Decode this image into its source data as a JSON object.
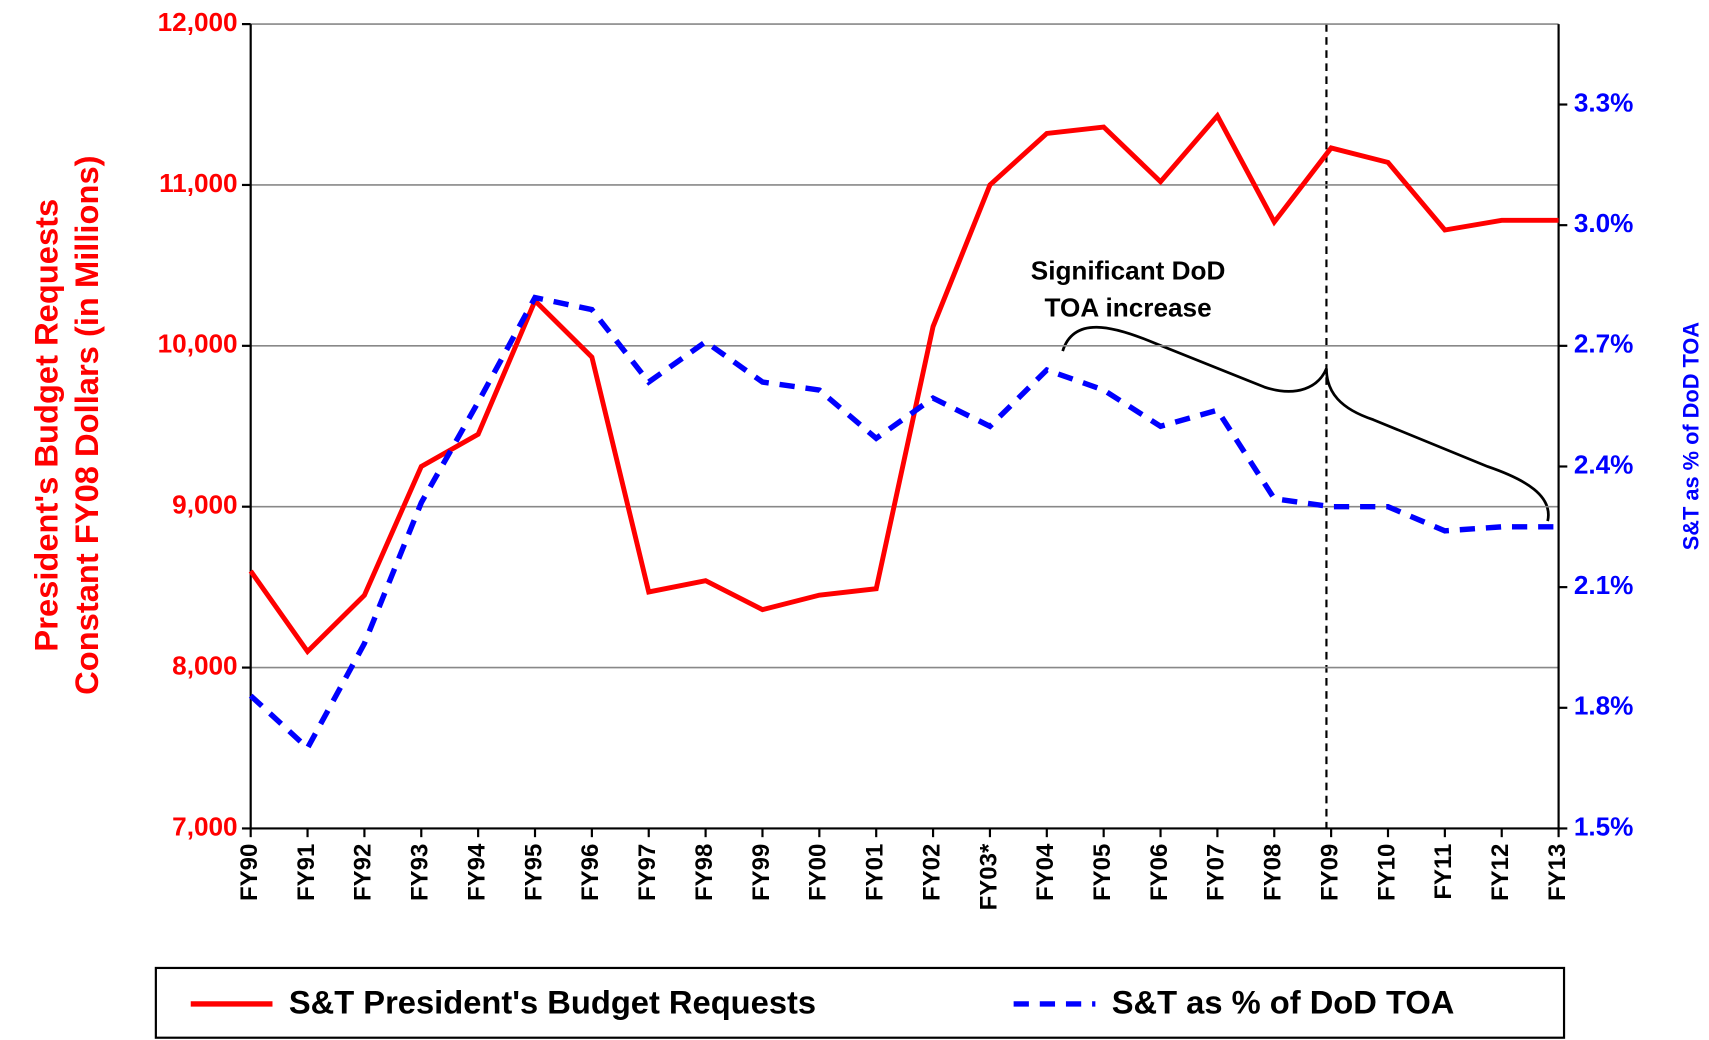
{
  "chart_data": {
    "type": "line",
    "y_axis_label": [
      "President's Budget Requests",
      "Constant FY08 Dollars (in Millions)"
    ],
    "y2_axis_label": "S&T as % of DoD TOA",
    "annotation": [
      "Significant DoD",
      "TOA increase"
    ],
    "categories": [
      "FY90",
      "FY91",
      "FY92",
      "FY93",
      "FY94",
      "FY95",
      "FY96",
      "FY97",
      "FY98",
      "FY99",
      "FY00",
      "FY01",
      "FY02",
      "FY03*",
      "FY04",
      "FY05",
      "FY06",
      "FY07",
      "FY08",
      "FY09",
      "FY10",
      "FY11",
      "FY12",
      "FY13"
    ],
    "series": [
      {
        "name": "S&T President's Budget Requests",
        "color": "#ff0000",
        "style": "solid",
        "values": [
          8600,
          8100,
          8450,
          9250,
          9450,
          10280,
          9930,
          8470,
          8540,
          8360,
          8450,
          8490,
          10120,
          11000,
          11320,
          11360,
          11020,
          11430,
          10770,
          11230,
          11140,
          10720,
          10780,
          10780
        ]
      },
      {
        "name": "S&T as % of DoD TOA",
        "color": "#0000ff",
        "style": "dashed",
        "axis": "y2",
        "values": [
          1.83,
          1.7,
          1.96,
          2.31,
          2.56,
          2.82,
          2.79,
          2.61,
          2.71,
          2.61,
          2.59,
          2.47,
          2.57,
          2.5,
          2.64,
          2.59,
          2.5,
          2.54,
          2.32,
          2.3,
          2.3,
          2.24,
          2.25,
          2.25
        ]
      }
    ],
    "ylim": [
      7000,
      12000
    ],
    "yticks": [
      {
        "value": 7000,
        "label": "7,000"
      },
      {
        "value": 8000,
        "label": "8,000"
      },
      {
        "value": 9000,
        "label": "9,000"
      },
      {
        "value": 10000,
        "label": "10,000"
      },
      {
        "value": 11000,
        "label": "11,000"
      },
      {
        "value": 12000,
        "label": "12,000"
      }
    ],
    "y2lim": [
      1.5,
      3.5
    ],
    "y2ticks": [
      {
        "value": 1.5,
        "label": "1.5%"
      },
      {
        "value": 1.8,
        "label": "1.8%"
      },
      {
        "value": 2.1,
        "label": "2.1%"
      },
      {
        "value": 2.4,
        "label": "2.4%"
      },
      {
        "value": 2.7,
        "label": "2.7%"
      },
      {
        "value": 3.0,
        "label": "3.0%"
      },
      {
        "value": 3.3,
        "label": "3.3%"
      }
    ],
    "grid": true,
    "legend": "bottom"
  }
}
